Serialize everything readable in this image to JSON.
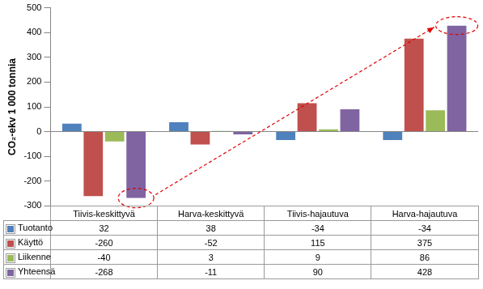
{
  "chart_data": {
    "type": "bar",
    "y_label": "CO₂-ekv 1 000 tonnia",
    "categories": [
      "Tiivis-keskittyvä",
      "Harva-keskittyvä",
      "Tiivis-hajautuva",
      "Harva-hajautuva"
    ],
    "series": [
      {
        "name": "Tuotanto",
        "color": "#4f81bd",
        "values": [
          32,
          38,
          -34,
          -34
        ]
      },
      {
        "name": "Käyttö",
        "color": "#c0504d",
        "values": [
          -260,
          -52,
          115,
          375
        ]
      },
      {
        "name": "Liikenne",
        "color": "#9bbb59",
        "values": [
          -40,
          3,
          9,
          86
        ]
      },
      {
        "name": "Yhteensä",
        "color": "#8064a2",
        "values": [
          -268,
          -11,
          90,
          428
        ]
      }
    ],
    "ylim": [
      -300,
      500
    ],
    "yticks": [
      -300,
      -200,
      -100,
      0,
      100,
      200,
      300,
      400,
      500
    ],
    "grid": false
  }
}
